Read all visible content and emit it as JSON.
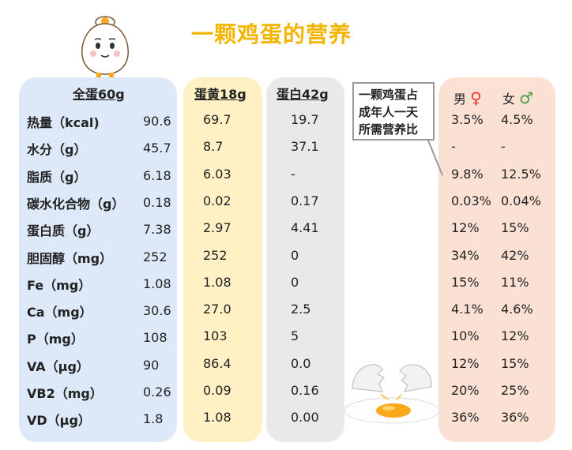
{
  "title": "一颗鸡蛋的营养",
  "headers": {
    "whole": "全蛋60g",
    "yolk": "蛋黄18g",
    "white": "蛋白42g"
  },
  "note": [
    "一颗鸡蛋占",
    "成年人一天",
    "所需营养比"
  ],
  "gender": {
    "male_label": "男",
    "male_symbol": "♀",
    "female_label": "女",
    "female_symbol": "♂"
  },
  "rows": [
    {
      "label": "热量（kcal)",
      "whole": "90.6",
      "yolk": "69.7",
      "white": "19.7",
      "male": "3.5%",
      "female": "4.5%"
    },
    {
      "label": "水分（g）",
      "whole": "45.7",
      "yolk": "8.7",
      "white": "37.1",
      "male": "-",
      "female": "-"
    },
    {
      "label": "脂质（g）",
      "whole": "6.18",
      "yolk": "6.03",
      "white": "-",
      "male": "9.8%",
      "female": "12.5%"
    },
    {
      "label": "碳水化合物（g）",
      "whole": "0.18",
      "yolk": "0.02",
      "white": "0.17",
      "male": "0.03%",
      "female": "0.04%"
    },
    {
      "label": "蛋白质（g）",
      "whole": "7.38",
      "yolk": "2.97",
      "white": "4.41",
      "male": "12%",
      "female": "15%"
    },
    {
      "label": "胆固醇（mg）",
      "whole": "252",
      "yolk": "252",
      "white": "0",
      "male": "34%",
      "female": "42%"
    },
    {
      "label": "Fe（mg）",
      "whole": "1.08",
      "yolk": "1.08",
      "white": "0",
      "male": "15%",
      "female": "11%"
    },
    {
      "label": "Ca（mg）",
      "whole": "30.6",
      "yolk": "27.0",
      "white": "2.5",
      "male": "4.1%",
      "female": "4.6%"
    },
    {
      "label": "P（mg）",
      "whole": "108",
      "yolk": "103",
      "white": "5",
      "male": "10%",
      "female": "12%"
    },
    {
      "label": "VA（μg）",
      "whole": "90",
      "yolk": "86.4",
      "white": "0.0",
      "male": "12%",
      "female": "15%"
    },
    {
      "label": "VB2（mg）",
      "whole": "0.26",
      "yolk": "0.09",
      "white": "0.16",
      "male": "20%",
      "female": "25%"
    },
    {
      "label": "VD（μg）",
      "whole": "1.8",
      "yolk": "1.08",
      "white": "0.00",
      "male": "36%",
      "female": "36%"
    }
  ]
}
